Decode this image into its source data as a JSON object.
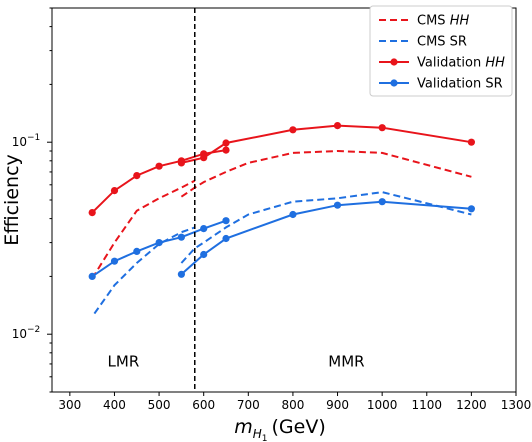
{
  "chart_data": {
    "type": "line",
    "xlabel": "m_{H_1} (GeV)",
    "xlabel_main": "m",
    "xlabel_sub": "H",
    "xlabel_subsub": "1",
    "xlabel_unit": "(GeV)",
    "ylabel": "Efficiency",
    "xlim": [
      260,
      1300
    ],
    "ylim": [
      0.005,
      0.5
    ],
    "yscale": "log",
    "x_ticks": [
      300,
      400,
      500,
      600,
      700,
      800,
      900,
      1000,
      1100,
      1200,
      1300
    ],
    "x_tick_labels": [
      "300",
      "400",
      "500",
      "600",
      "700",
      "800",
      "900",
      "1000",
      "1100",
      "1200",
      "1300"
    ],
    "y_major_ticks": [
      0.01,
      0.1
    ],
    "y_major_tick_bases": [
      "10",
      "10"
    ],
    "y_major_tick_exponents": [
      "−2",
      "−1"
    ],
    "legend_placement": "top-right",
    "grid": false,
    "vertical_line": {
      "x": 580,
      "style": "dashed",
      "color": "#000000"
    },
    "regions": [
      {
        "label": "LMR",
        "x": 420,
        "y": 0.0068
      },
      {
        "label": "MMR",
        "x": 920,
        "y": 0.0068
      }
    ],
    "series": [
      {
        "name": "CMS ",
        "name_italic": "HH",
        "color": "#e8141b",
        "style": "dashed",
        "markers": false,
        "segments": [
          [
            [
              350,
              0.0195
            ],
            [
              400,
              0.03
            ],
            [
              450,
              0.044
            ],
            [
              500,
              0.051
            ],
            [
              550,
              0.058
            ],
            [
              580,
              0.063
            ]
          ],
          [
            [
              550,
              0.052
            ],
            [
              580,
              0.058
            ],
            [
              600,
              0.062
            ],
            [
              650,
              0.07
            ],
            [
              700,
              0.078
            ],
            [
              800,
              0.088
            ],
            [
              900,
              0.09
            ],
            [
              1000,
              0.088
            ],
            [
              1200,
              0.066
            ]
          ]
        ]
      },
      {
        "name": "CMS SR",
        "name_italic": "",
        "color": "#1f6fe0",
        "style": "dashed",
        "markers": false,
        "segments": [
          [
            [
              355,
              0.0128
            ],
            [
              400,
              0.018
            ],
            [
              450,
              0.0235
            ],
            [
              500,
              0.0295
            ],
            [
              550,
              0.034
            ],
            [
              580,
              0.036
            ]
          ],
          [
            [
              550,
              0.0235
            ],
            [
              580,
              0.028
            ],
            [
              600,
              0.03
            ],
            [
              650,
              0.036
            ],
            [
              700,
              0.042
            ],
            [
              800,
              0.049
            ],
            [
              900,
              0.051
            ],
            [
              1000,
              0.055
            ],
            [
              1200,
              0.042
            ]
          ]
        ]
      },
      {
        "name": "Validation ",
        "name_italic": "HH",
        "color": "#e8141b",
        "style": "solid",
        "markers": true,
        "segments": [
          [
            [
              350,
              0.043
            ],
            [
              400,
              0.056
            ],
            [
              450,
              0.067
            ],
            [
              500,
              0.075
            ],
            [
              550,
              0.08
            ],
            [
              600,
              0.087
            ],
            [
              650,
              0.091
            ]
          ],
          [
            [
              550,
              0.078
            ],
            [
              600,
              0.083
            ],
            [
              650,
              0.099
            ],
            [
              800,
              0.116
            ],
            [
              900,
              0.122
            ],
            [
              1000,
              0.119
            ],
            [
              1200,
              0.1
            ]
          ]
        ]
      },
      {
        "name": "Validation SR",
        "name_italic": "",
        "color": "#1f6fe0",
        "style": "solid",
        "markers": true,
        "segments": [
          [
            [
              350,
              0.02
            ],
            [
              400,
              0.024
            ],
            [
              450,
              0.027
            ],
            [
              500,
              0.03
            ],
            [
              550,
              0.032
            ],
            [
              600,
              0.0355
            ],
            [
              650,
              0.039
            ]
          ],
          [
            [
              550,
              0.0205
            ],
            [
              600,
              0.026
            ],
            [
              650,
              0.0315
            ],
            [
              800,
              0.042
            ],
            [
              900,
              0.047
            ],
            [
              1000,
              0.049
            ],
            [
              1200,
              0.045
            ]
          ]
        ]
      }
    ]
  }
}
